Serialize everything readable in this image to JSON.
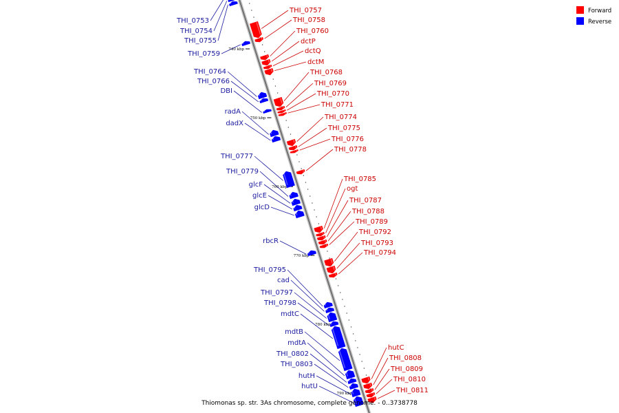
{
  "caption": "Thiomonas sp. str. 3As chromosome, complete genome. - 0..3738778",
  "legend": [
    {
      "label": "Forward",
      "color": "#ff0000"
    },
    {
      "label": "Reverse",
      "color": "#0000ff"
    }
  ],
  "colors": {
    "forward": "#ff0000",
    "reverse": "#0000ff",
    "axis": "#9a9a9a",
    "label_forward": "#cc0000",
    "label_reverse": "#1a1aa0"
  },
  "axis": {
    "start_kbp": 732,
    "end_kbp": 790
  },
  "ticks": [
    {
      "kbp": 740,
      "label": "740 kbp"
    },
    {
      "kbp": 750,
      "label": "750 kbp"
    },
    {
      "kbp": 760,
      "label": "760 kbp"
    },
    {
      "kbp": 770,
      "label": "770 kbp"
    },
    {
      "kbp": 780,
      "label": "780 kbp"
    },
    {
      "kbp": 790,
      "label": "790 kbp"
    }
  ],
  "forward_genes": [
    {
      "name": "THI_0757",
      "start": 736.8,
      "end": 739.0
    },
    {
      "name": "THI_0758",
      "start": 739.1,
      "end": 739.6
    },
    {
      "name": "THI_0760",
      "start": 741.6,
      "end": 742.2
    },
    {
      "name": "dctP",
      "start": 742.3,
      "end": 743.0
    },
    {
      "name": "dctQ",
      "start": 743.1,
      "end": 743.5
    },
    {
      "name": "dctM",
      "start": 743.6,
      "end": 744.4
    },
    {
      "name": "THI_0768",
      "start": 747.8,
      "end": 749.0
    },
    {
      "name": "THI_0769",
      "start": 749.1,
      "end": 749.5
    },
    {
      "name": "THI_0770",
      "start": 749.6,
      "end": 749.9
    },
    {
      "name": "THI_0771",
      "start": 750.0,
      "end": 750.3
    },
    {
      "name": "THI_0774",
      "start": 753.9,
      "end": 754.7
    },
    {
      "name": "THI_0775",
      "start": 754.8,
      "end": 755.3
    },
    {
      "name": "THI_0776",
      "start": 755.4,
      "end": 755.7
    },
    {
      "name": "THI_0778",
      "start": 758.3,
      "end": 758.8
    },
    {
      "name": "THI_0785",
      "start": 766.5,
      "end": 767.3
    },
    {
      "name": "ogt",
      "start": 767.4,
      "end": 767.8
    },
    {
      "name": "THI_0787",
      "start": 767.9,
      "end": 768.4
    },
    {
      "name": "THI_0788",
      "start": 768.5,
      "end": 769.0
    },
    {
      "name": "THI_0789",
      "start": 769.1,
      "end": 769.5
    },
    {
      "name": "THI_0792",
      "start": 771.2,
      "end": 772.2
    },
    {
      "name": "THI_0793",
      "start": 772.3,
      "end": 773.2
    },
    {
      "name": "THI_0794",
      "start": 773.3,
      "end": 773.8
    },
    {
      "name": "hutC",
      "start": 788.4,
      "end": 789.2
    },
    {
      "name": "THI_0808",
      "start": 789.3,
      "end": 790.0
    },
    {
      "name": "THI_0809",
      "start": 790.1,
      "end": 790.6
    },
    {
      "name": "THI_0810",
      "start": 790.7,
      "end": 791.2
    },
    {
      "name": "THI_0811",
      "start": 791.3,
      "end": 792.0
    }
  ],
  "reverse_genes": [
    {
      "name": "THI_0753",
      "start": 731.8,
      "end": 732.5
    },
    {
      "name": "THI_0754",
      "start": 732.6,
      "end": 733.0
    },
    {
      "name": "THI_0755",
      "start": 733.1,
      "end": 733.6
    },
    {
      "name": "THI_0759",
      "start": 738.9,
      "end": 739.4
    },
    {
      "name": "THI_0764",
      "start": 746.3,
      "end": 747.1
    },
    {
      "name": "THI_0766",
      "start": 747.2,
      "end": 747.7
    },
    {
      "name": "DBI",
      "start": 748.8,
      "end": 749.2
    },
    {
      "name": "radA",
      "start": 751.8,
      "end": 752.6
    },
    {
      "name": "dadX",
      "start": 752.7,
      "end": 753.4
    },
    {
      "name": "THI_0777",
      "start": 757.8,
      "end": 760.0
    },
    {
      "name": "THI_0779",
      "start": 760.8,
      "end": 761.6
    },
    {
      "name": "glcF",
      "start": 761.8,
      "end": 762.6
    },
    {
      "name": "glcE",
      "start": 762.7,
      "end": 763.4
    },
    {
      "name": "glcD",
      "start": 763.5,
      "end": 764.4
    },
    {
      "name": "rbcR",
      "start": 769.3,
      "end": 769.9
    },
    {
      "name": "THI_0795",
      "start": 776.8,
      "end": 777.5
    },
    {
      "name": "cad",
      "start": 777.6,
      "end": 778.2
    },
    {
      "name": "THI_0797",
      "start": 778.3,
      "end": 779.5
    },
    {
      "name": "THI_0798",
      "start": 779.6,
      "end": 780.2
    },
    {
      "name": "mdtC",
      "start": 780.3,
      "end": 783.4
    },
    {
      "name": "mdtB",
      "start": 783.5,
      "end": 786.6
    },
    {
      "name": "mdtA",
      "start": 786.7,
      "end": 787.8
    },
    {
      "name": "THI_0802",
      "start": 787.9,
      "end": 788.5
    },
    {
      "name": "THI_0803",
      "start": 788.6,
      "end": 789.3
    },
    {
      "name": "hutH",
      "start": 789.4,
      "end": 790.4
    },
    {
      "name": "hutU",
      "start": 790.5,
      "end": 791.8
    }
  ]
}
